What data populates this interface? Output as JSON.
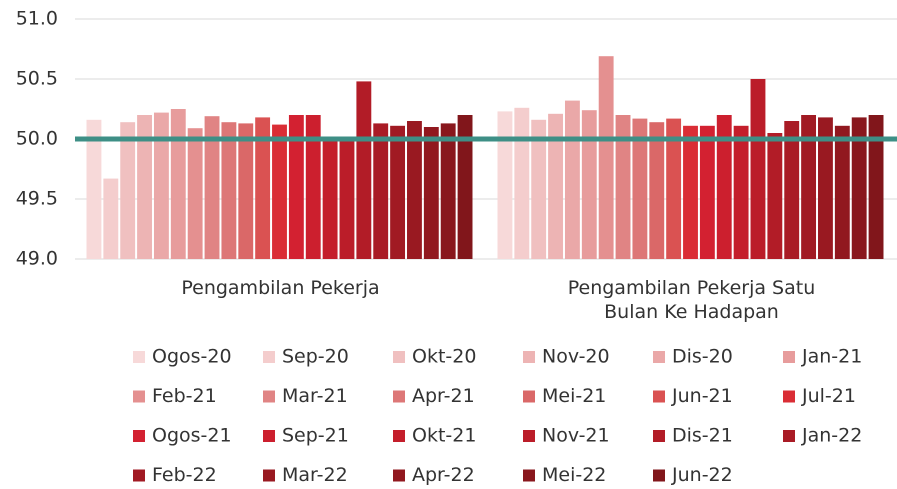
{
  "chart_data": {
    "type": "bar",
    "categories": [
      "Pengambilan Pekerja",
      "Pengambilan Pekerja Satu Bulan Ke Hadapan"
    ],
    "ylim": [
      49,
      51
    ],
    "yticks": [
      {
        "value": 49,
        "label": "49.0"
      },
      49.5,
      {
        "value": 50,
        "label": "50.0"
      },
      50.5,
      {
        "value": 51,
        "label": "51.0"
      }
    ],
    "grid": true,
    "reference_line": {
      "value": 50,
      "color": "#3e8f86"
    },
    "legend": "bottom",
    "series": [
      {
        "name": "Ogos-20",
        "color": "#f7d9d9",
        "values": [
          50.16,
          50.23
        ]
      },
      {
        "name": "Sep-20",
        "color": "#f4cdcd",
        "values": [
          49.67,
          50.26
        ]
      },
      {
        "name": "Okt-20",
        "color": "#f0c0c0",
        "values": [
          50.14,
          50.16
        ]
      },
      {
        "name": "Nov-20",
        "color": "#edb4b4",
        "values": [
          50.2,
          50.21
        ]
      },
      {
        "name": "Dis-20",
        "color": "#eaa8a8",
        "values": [
          50.22,
          50.32
        ]
      },
      {
        "name": "Jan-21",
        "color": "#e79c9c",
        "values": [
          50.25,
          50.24
        ]
      },
      {
        "name": "Feb-21",
        "color": "#e49090",
        "values": [
          50.09,
          50.69
        ]
      },
      {
        "name": "Mar-21",
        "color": "#e08484",
        "values": [
          50.19,
          50.2
        ]
      },
      {
        "name": "Apr-21",
        "color": "#dd7777",
        "values": [
          50.14,
          50.17
        ]
      },
      {
        "name": "Mei-21",
        "color": "#da6868",
        "values": [
          50.13,
          50.14
        ]
      },
      {
        "name": "Jun-21",
        "color": "#da5252",
        "values": [
          50.18,
          50.17
        ]
      },
      {
        "name": "Jul-21",
        "color": "#da2d35",
        "values": [
          50.12,
          50.11
        ]
      },
      {
        "name": "Ogos-21",
        "color": "#d32131",
        "values": [
          50.2,
          50.11
        ]
      },
      {
        "name": "Sep-21",
        "color": "#cc1f2e",
        "values": [
          50.2,
          50.2
        ]
      },
      {
        "name": "Okt-21",
        "color": "#c41e2b",
        "values": [
          50.0,
          50.11
        ]
      },
      {
        "name": "Nov-21",
        "color": "#bb1d29",
        "values": [
          50.0,
          50.5
        ]
      },
      {
        "name": "Dis-21",
        "color": "#b21c27",
        "values": [
          50.48,
          50.05
        ]
      },
      {
        "name": "Jan-22",
        "color": "#a91b25",
        "values": [
          50.13,
          50.15
        ]
      },
      {
        "name": "Feb-22",
        "color": "#a11a23",
        "values": [
          50.11,
          50.2
        ]
      },
      {
        "name": "Mar-22",
        "color": "#991921",
        "values": [
          50.15,
          50.18
        ]
      },
      {
        "name": "Apr-22",
        "color": "#91181f",
        "values": [
          50.1,
          50.11
        ]
      },
      {
        "name": "Mei-22",
        "color": "#89171d",
        "values": [
          50.13,
          50.18
        ]
      },
      {
        "name": "Jun-22",
        "color": "#81161b",
        "values": [
          50.2,
          50.2
        ]
      }
    ]
  }
}
